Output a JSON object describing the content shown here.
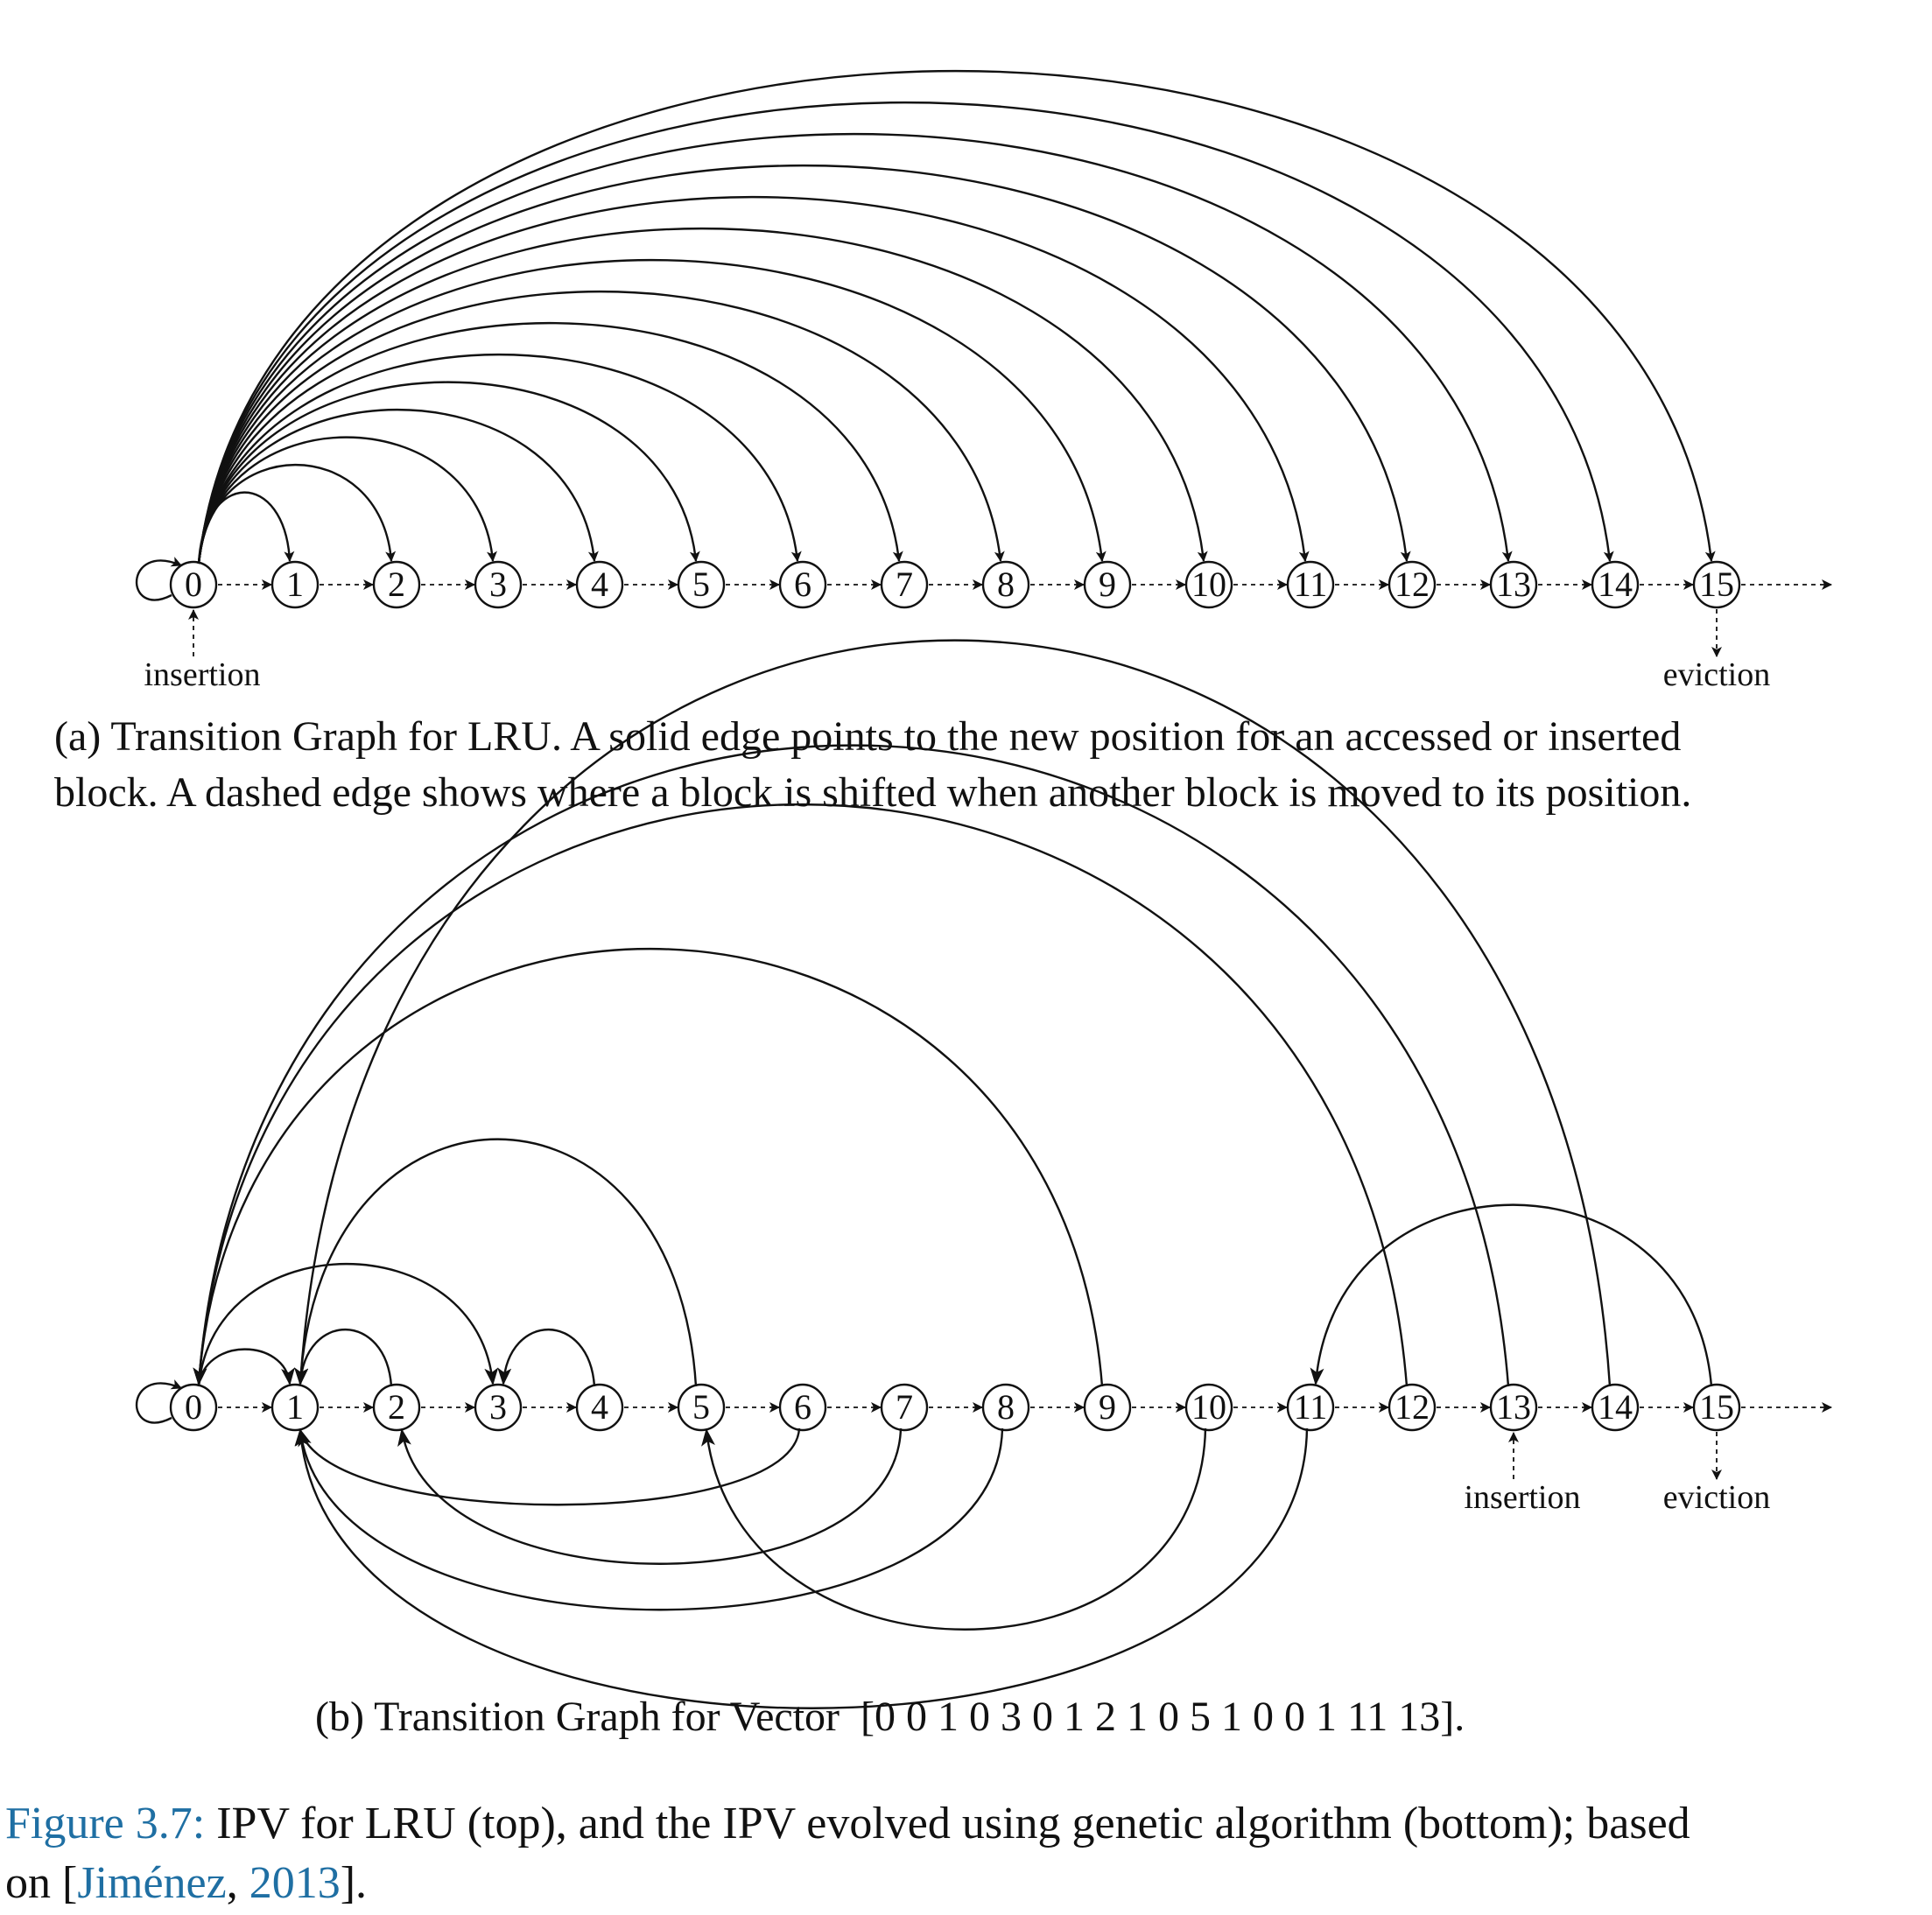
{
  "graph_a": {
    "nodes": [
      "0",
      "1",
      "2",
      "3",
      "4",
      "5",
      "6",
      "7",
      "8",
      "9",
      "10",
      "11",
      "12",
      "13",
      "14",
      "15"
    ],
    "insertion_label": "insertion",
    "eviction_label": "eviction",
    "solid_edges": [
      [
        0,
        0
      ],
      [
        0,
        1
      ],
      [
        0,
        2
      ],
      [
        0,
        3
      ],
      [
        0,
        4
      ],
      [
        0,
        5
      ],
      [
        0,
        6
      ],
      [
        0,
        7
      ],
      [
        0,
        8
      ],
      [
        0,
        9
      ],
      [
        0,
        10
      ],
      [
        0,
        11
      ],
      [
        0,
        12
      ],
      [
        0,
        13
      ],
      [
        0,
        14
      ],
      [
        0,
        15
      ]
    ],
    "insertion_node": 0,
    "eviction_node": 15
  },
  "caption_a": {
    "line1": "(a) Transition Graph for LRU. A solid edge points to the new position for an accessed or inserted",
    "line2": "block. A dashed edge shows where a block is shifted when another block is moved to its position."
  },
  "graph_b": {
    "nodes": [
      "0",
      "1",
      "2",
      "3",
      "4",
      "5",
      "6",
      "7",
      "8",
      "9",
      "10",
      "11",
      "12",
      "13",
      "14",
      "15"
    ],
    "insertion_label": "insertion",
    "eviction_label": "eviction",
    "vector": [
      0,
      0,
      1,
      0,
      3,
      0,
      1,
      2,
      1,
      0,
      5,
      1,
      0,
      0,
      1,
      11,
      13
    ],
    "insertion_node": 13,
    "eviction_node": 15
  },
  "caption_b": {
    "prefix": "(b) Transition Graph for Vector",
    "vector_text": "[0 0 1 0 3 0 1 2 1 0 5 1 0 0 1 11 13]."
  },
  "figure_caption": {
    "label": "Figure 3.7:",
    "text": " IPV for LRU (top), and the IPV evolved using genetic algorithm (bottom); based",
    "line2_prefix": "on [",
    "cite_author": "Jiménez",
    "cite_sep": ", ",
    "cite_year": "2013",
    "line2_suffix": "]."
  },
  "colors": {
    "ink": "#111111",
    "link": "#1f6fa3"
  }
}
